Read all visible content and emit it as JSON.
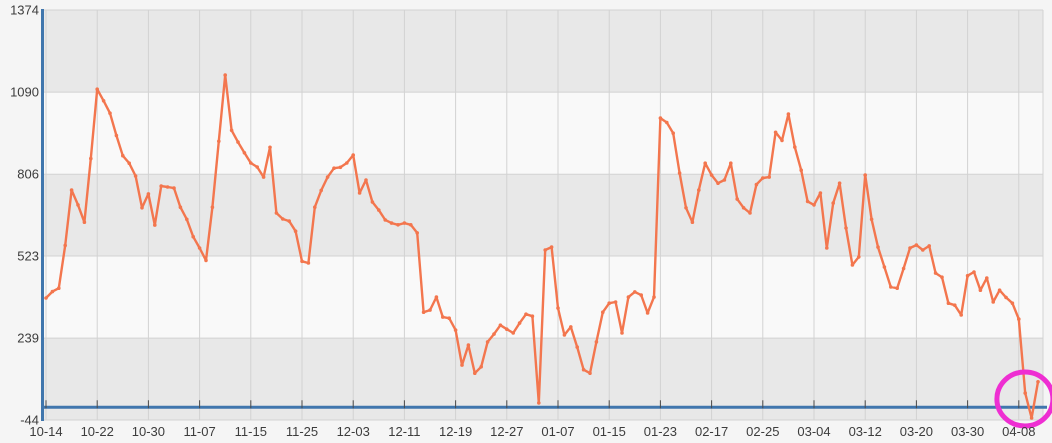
{
  "chart_data": {
    "type": "line",
    "title": "",
    "xlabel": "",
    "ylabel": "",
    "y_tick_labels": [
      "1374",
      "1090",
      "806",
      "523",
      "239",
      "-44"
    ],
    "y_ticks": [
      1374,
      1090,
      806,
      523,
      239,
      -44
    ],
    "ylim": [
      -44,
      1374
    ],
    "x_tick_labels": [
      "10-14",
      "10-22",
      "10-30",
      "11-07",
      "11-15",
      "11-25",
      "12-03",
      "12-11",
      "12-19",
      "12-27",
      "01-07",
      "01-15",
      "01-23",
      "02-17",
      "02-25",
      "03-04",
      "03-12",
      "03-20",
      "03-30",
      "04-08"
    ],
    "points_per_tick": 8,
    "grid": true,
    "legend": false,
    "banded_background": true,
    "values": [
      378,
      400,
      412,
      560,
      751,
      700,
      640,
      860,
      1100,
      1060,
      1017,
      940,
      870,
      844,
      800,
      690,
      738,
      630,
      765,
      762,
      758,
      692,
      650,
      590,
      551,
      508,
      692,
      920,
      1149,
      958,
      917,
      880,
      845,
      831,
      796,
      899,
      672,
      651,
      644,
      609,
      505,
      499,
      692,
      750,
      796,
      827,
      830,
      845,
      872,
      741,
      786,
      710,
      682,
      648,
      637,
      631,
      637,
      631,
      603,
      329,
      336,
      381,
      312,
      308,
      267,
      146,
      215,
      118,
      140,
      226,
      253,
      284,
      270,
      257,
      291,
      322,
      315,
      15,
      544,
      554,
      343,
      250,
      278,
      208,
      130,
      118,
      226,
      329,
      360,
      364,
      257,
      381,
      399,
      388,
      326,
      381,
      1000,
      985,
      948,
      810,
      690,
      640,
      751,
      844,
      803,
      775,
      786,
      844,
      720,
      690,
      672,
      770,
      793,
      796,
      951,
      923,
      1014,
      900,
      820,
      712,
      700,
      741,
      551,
      706,
      775,
      620,
      492,
      520,
      803,
      650,
      554,
      485,
      416,
      412,
      480,
      551,
      561,
      544,
      558,
      464,
      450,
      360,
      353,
      319,
      455,
      468,
      405,
      447,
      364,
      405,
      380,
      360,
      305,
      49,
      -37,
      88
    ],
    "annotation": {
      "shape": "ellipse-highlight",
      "at_x_tick_label": "04-08",
      "lowest_annotated_value": -37
    }
  },
  "colors": {
    "page_bg": "#f5f5f5",
    "band_dark": "#e8e8e8",
    "band_light": "#f9f9f9",
    "gridline": "#d2d2d2",
    "axis_blue": "#4076ad",
    "tick_mark": "#4a4a4a",
    "label_text": "#3c3c3c",
    "series_line": "#f3764e",
    "series_marker": "#f3764e",
    "annotation_circle": "#ee2ed2"
  }
}
